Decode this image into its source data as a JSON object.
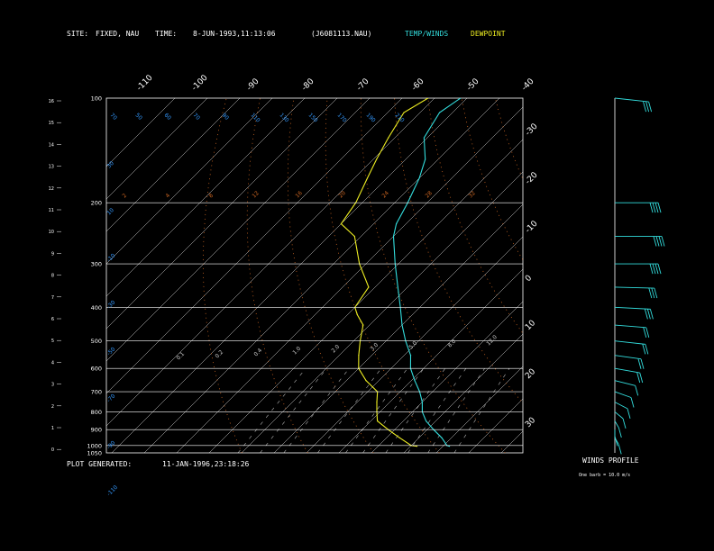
{
  "header": {
    "site_label": "SITE:",
    "site_value": "FIXED, NAU",
    "time_label": "TIME:",
    "time_value": "8-JUN-1993,11:13:06",
    "file": "(J6081113.NAU)",
    "legend_temp": "TEMP/WINDS",
    "legend_dew": "DEWPOINT"
  },
  "footer": {
    "generated_label": "PLOT GENERATED:",
    "generated_value": "11-JAN-1996,23:18:26"
  },
  "wind_panel": {
    "title": "WINDS PROFILE",
    "note": "One barb = 10.0 m/s"
  },
  "colors": {
    "temp": "#33dddd",
    "dewpoint": "#eeee22",
    "isobar": "#ffffff",
    "isotherm": "#ffffff",
    "dry_adiabat": "#cc6622",
    "moist_adiabat": "#cc6622",
    "mixing_ratio": "#ffffff",
    "theta_e_labels": "#3399ff",
    "header_temp": "#33dddd",
    "header_dew": "#eeee22"
  },
  "chart_data": {
    "type": "line",
    "pressure_levels": [
      "100",
      "200",
      "300",
      "400",
      "500",
      "600",
      "700",
      "800",
      "900",
      "1000",
      "1050"
    ],
    "height_ticks": [
      "16",
      "15",
      "14",
      "13",
      "12",
      "11",
      "10",
      "9",
      "8",
      "7",
      "6",
      "5",
      "4",
      "3",
      "2",
      "1",
      "0"
    ],
    "isotherm_top_labels": [
      "-110",
      "-100",
      "-90",
      "-80",
      "-70",
      "-60",
      "-50",
      "-40"
    ],
    "isotherm_right_labels": [
      "-30",
      "-20",
      "-10",
      "0",
      "10",
      "20",
      "30"
    ],
    "theta_e_labels": [
      "70",
      "50",
      "60",
      "70",
      "90",
      "110",
      "130",
      "150",
      "170",
      "190",
      "210"
    ],
    "dry_adiabat_labels": [
      "2",
      "4",
      "8",
      "12",
      "16",
      "20",
      "24",
      "28",
      "32"
    ],
    "mixing_ratio_labels": [
      "0.1",
      "0.2",
      "0.4",
      "1.0",
      "2.0",
      "3.0",
      "5.0",
      "8.0",
      "12.0"
    ],
    "lower_left_labels": [
      "30",
      "10",
      "-10",
      "-30",
      "-50",
      "-70",
      "-90",
      "-110"
    ],
    "temperature": [
      {
        "p": 100,
        "t": -82
      },
      {
        "p": 110,
        "t": -84
      },
      {
        "p": 130,
        "t": -81
      },
      {
        "p": 150,
        "t": -74
      },
      {
        "p": 170,
        "t": -70
      },
      {
        "p": 200,
        "t": -66
      },
      {
        "p": 230,
        "t": -63
      },
      {
        "p": 250,
        "t": -60
      },
      {
        "p": 300,
        "t": -51
      },
      {
        "p": 350,
        "t": -43
      },
      {
        "p": 400,
        "t": -36
      },
      {
        "p": 450,
        "t": -30
      },
      {
        "p": 500,
        "t": -24
      },
      {
        "p": 550,
        "t": -18
      },
      {
        "p": 600,
        "t": -14
      },
      {
        "p": 650,
        "t": -9
      },
      {
        "p": 700,
        "t": -4
      },
      {
        "p": 750,
        "t": 0
      },
      {
        "p": 800,
        "t": 3
      },
      {
        "p": 850,
        "t": 7
      },
      {
        "p": 900,
        "t": 12
      },
      {
        "p": 950,
        "t": 17
      },
      {
        "p": 1000,
        "t": 21
      },
      {
        "p": 1005,
        "t": 22
      }
    ],
    "dewpoint": [
      {
        "p": 100,
        "t": -92
      },
      {
        "p": 110,
        "t": -95
      },
      {
        "p": 130,
        "t": -92
      },
      {
        "p": 150,
        "t": -89
      },
      {
        "p": 170,
        "t": -86
      },
      {
        "p": 200,
        "t": -82
      },
      {
        "p": 230,
        "t": -80
      },
      {
        "p": 250,
        "t": -72
      },
      {
        "p": 300,
        "t": -62
      },
      {
        "p": 350,
        "t": -52
      },
      {
        "p": 400,
        "t": -50
      },
      {
        "p": 420,
        "t": -47
      },
      {
        "p": 450,
        "t": -42
      },
      {
        "p": 500,
        "t": -38
      },
      {
        "p": 550,
        "t": -34
      },
      {
        "p": 600,
        "t": -30
      },
      {
        "p": 650,
        "t": -24
      },
      {
        "p": 700,
        "t": -17
      },
      {
        "p": 750,
        "t": -14
      },
      {
        "p": 800,
        "t": -11
      },
      {
        "p": 850,
        "t": -8
      },
      {
        "p": 900,
        "t": -2
      },
      {
        "p": 950,
        "t": 4
      },
      {
        "p": 1000,
        "t": 10
      },
      {
        "p": 1005,
        "t": 12
      }
    ],
    "winds": [
      {
        "p": 100,
        "dir": 250,
        "spd": 25
      },
      {
        "p": 200,
        "dir": 270,
        "spd": 35
      },
      {
        "p": 250,
        "dir": 270,
        "spd": 40
      },
      {
        "p": 300,
        "dir": 270,
        "spd": 35
      },
      {
        "p": 350,
        "dir": 265,
        "spd": 30
      },
      {
        "p": 400,
        "dir": 260,
        "spd": 25
      },
      {
        "p": 450,
        "dir": 255,
        "spd": 20
      },
      {
        "p": 500,
        "dir": 250,
        "spd": 20
      },
      {
        "p": 550,
        "dir": 245,
        "spd": 15
      },
      {
        "p": 600,
        "dir": 240,
        "spd": 15
      },
      {
        "p": 650,
        "dir": 230,
        "spd": 12
      },
      {
        "p": 700,
        "dir": 220,
        "spd": 10
      },
      {
        "p": 750,
        "dir": 210,
        "spd": 10
      },
      {
        "p": 800,
        "dir": 200,
        "spd": 8
      },
      {
        "p": 850,
        "dir": 190,
        "spd": 6
      },
      {
        "p": 900,
        "dir": 180,
        "spd": 5
      },
      {
        "p": 950,
        "dir": 170,
        "spd": 5
      }
    ],
    "xlabel": "",
    "ylabel": ""
  }
}
